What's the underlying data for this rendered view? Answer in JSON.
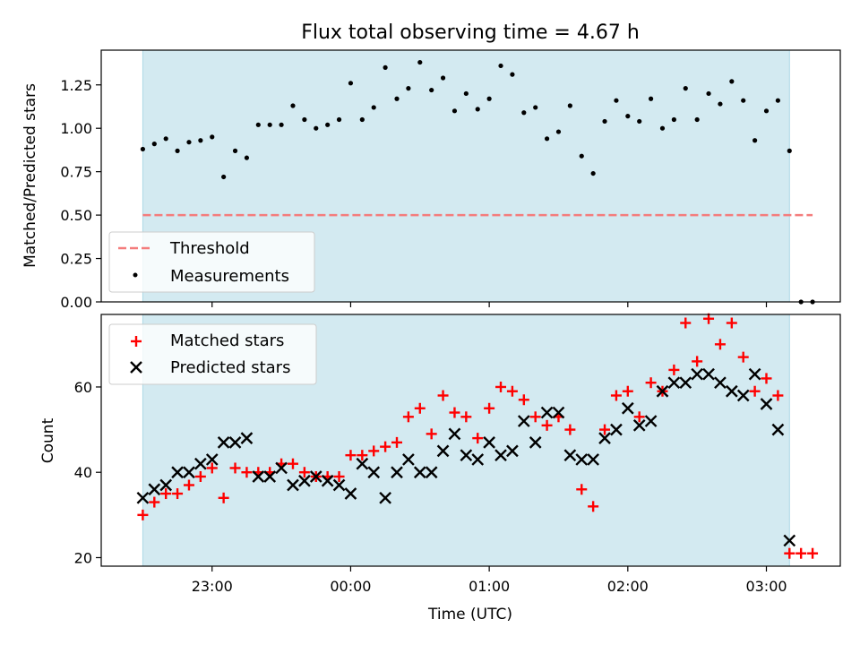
{
  "chart_data": [
    {
      "type": "scatter",
      "title": "Flux total observing time = 4.67 h",
      "xlabel": "",
      "ylabel": "Matched/Predicted stars",
      "ylim": [
        0,
        1.45
      ],
      "y_ticks": [
        "0.00",
        "0.25",
        "0.50",
        "0.75",
        "1.00",
        "1.25"
      ],
      "observing_window": [
        "22:30",
        "03:10"
      ],
      "shade_color": "#d3eaf1",
      "legend_position": "lower-left",
      "legend": [
        "Threshold",
        "Measurements"
      ],
      "threshold": {
        "name": "Threshold",
        "y": 0.5,
        "x_range": [
          "22:30",
          "03:20"
        ],
        "color": "#f47c7c"
      },
      "series": [
        {
          "name": "Measurements",
          "color": "#000000",
          "points": [
            [
              "22:30",
              0.88
            ],
            [
              "22:35",
              0.91
            ],
            [
              "22:40",
              0.94
            ],
            [
              "22:45",
              0.87
            ],
            [
              "22:50",
              0.92
            ],
            [
              "22:55",
              0.93
            ],
            [
              "23:00",
              0.95
            ],
            [
              "23:05",
              0.72
            ],
            [
              "23:10",
              0.87
            ],
            [
              "23:15",
              0.83
            ],
            [
              "23:20",
              1.02
            ],
            [
              "23:25",
              1.02
            ],
            [
              "23:30",
              1.02
            ],
            [
              "23:35",
              1.13
            ],
            [
              "23:40",
              1.05
            ],
            [
              "23:45",
              1.0
            ],
            [
              "23:50",
              1.02
            ],
            [
              "23:55",
              1.05
            ],
            [
              "00:00",
              1.26
            ],
            [
              "00:05",
              1.05
            ],
            [
              "00:10",
              1.12
            ],
            [
              "00:15",
              1.35
            ],
            [
              "00:20",
              1.17
            ],
            [
              "00:25",
              1.23
            ],
            [
              "00:30",
              1.38
            ],
            [
              "00:35",
              1.22
            ],
            [
              "00:40",
              1.29
            ],
            [
              "00:45",
              1.1
            ],
            [
              "00:50",
              1.2
            ],
            [
              "00:55",
              1.11
            ],
            [
              "01:00",
              1.17
            ],
            [
              "01:05",
              1.36
            ],
            [
              "01:10",
              1.31
            ],
            [
              "01:15",
              1.09
            ],
            [
              "01:20",
              1.12
            ],
            [
              "01:25",
              0.94
            ],
            [
              "01:30",
              0.98
            ],
            [
              "01:35",
              1.13
            ],
            [
              "01:40",
              0.84
            ],
            [
              "01:45",
              0.74
            ],
            [
              "01:50",
              1.04
            ],
            [
              "01:55",
              1.16
            ],
            [
              "02:00",
              1.07
            ],
            [
              "02:05",
              1.04
            ],
            [
              "02:10",
              1.17
            ],
            [
              "02:15",
              1.0
            ],
            [
              "02:20",
              1.05
            ],
            [
              "02:25",
              1.23
            ],
            [
              "02:30",
              1.05
            ],
            [
              "02:35",
              1.2
            ],
            [
              "02:40",
              1.14
            ],
            [
              "02:45",
              1.27
            ],
            [
              "02:50",
              1.16
            ],
            [
              "02:55",
              0.93
            ],
            [
              "03:00",
              1.1
            ],
            [
              "03:05",
              1.16
            ],
            [
              "03:10",
              0.87
            ],
            [
              "03:15",
              0.0
            ],
            [
              "03:20",
              0.0
            ]
          ]
        }
      ]
    },
    {
      "type": "scatter",
      "title": "",
      "xlabel": "Time (UTC)",
      "ylabel": "Count",
      "ylim": [
        18,
        77
      ],
      "y_ticks": [
        "20",
        "40",
        "60"
      ],
      "x_ticks": [
        "23:00",
        "00:00",
        "01:00",
        "02:00",
        "03:00"
      ],
      "observing_window": [
        "22:30",
        "03:10"
      ],
      "shade_color": "#d3eaf1",
      "legend_position": "upper-left",
      "legend": [
        "Matched stars",
        "Predicted stars"
      ],
      "series": [
        {
          "name": "Matched stars",
          "marker": "plus",
          "color": "#ff0000",
          "points": [
            [
              "22:30",
              30
            ],
            [
              "22:35",
              33
            ],
            [
              "22:40",
              35
            ],
            [
              "22:45",
              35
            ],
            [
              "22:50",
              37
            ],
            [
              "22:55",
              39
            ],
            [
              "23:00",
              41
            ],
            [
              "23:05",
              34
            ],
            [
              "23:10",
              41
            ],
            [
              "23:15",
              40
            ],
            [
              "23:20",
              40
            ],
            [
              "23:25",
              40
            ],
            [
              "23:30",
              42
            ],
            [
              "23:35",
              42
            ],
            [
              "23:40",
              40
            ],
            [
              "23:45",
              39
            ],
            [
              "23:50",
              39
            ],
            [
              "23:55",
              39
            ],
            [
              "00:00",
              44
            ],
            [
              "00:05",
              44
            ],
            [
              "00:10",
              45
            ],
            [
              "00:15",
              46
            ],
            [
              "00:20",
              47
            ],
            [
              "00:25",
              53
            ],
            [
              "00:30",
              55
            ],
            [
              "00:35",
              49
            ],
            [
              "00:40",
              58
            ],
            [
              "00:45",
              54
            ],
            [
              "00:50",
              53
            ],
            [
              "00:55",
              48
            ],
            [
              "01:00",
              55
            ],
            [
              "01:05",
              60
            ],
            [
              "01:10",
              59
            ],
            [
              "01:15",
              57
            ],
            [
              "01:20",
              53
            ],
            [
              "01:25",
              51
            ],
            [
              "01:30",
              53
            ],
            [
              "01:35",
              50
            ],
            [
              "01:40",
              36
            ],
            [
              "01:45",
              32
            ],
            [
              "01:50",
              50
            ],
            [
              "01:55",
              58
            ],
            [
              "02:00",
              59
            ],
            [
              "02:05",
              53
            ],
            [
              "02:10",
              61
            ],
            [
              "02:15",
              59
            ],
            [
              "02:20",
              64
            ],
            [
              "02:25",
              75
            ],
            [
              "02:30",
              66
            ],
            [
              "02:35",
              76
            ],
            [
              "02:40",
              70
            ],
            [
              "02:45",
              75
            ],
            [
              "02:50",
              67
            ],
            [
              "02:55",
              59
            ],
            [
              "03:00",
              62
            ],
            [
              "03:05",
              58
            ],
            [
              "03:10",
              21
            ],
            [
              "03:15",
              21
            ],
            [
              "03:20",
              21
            ]
          ]
        },
        {
          "name": "Predicted stars",
          "marker": "x",
          "color": "#000000",
          "points": [
            [
              "22:30",
              34
            ],
            [
              "22:35",
              36
            ],
            [
              "22:40",
              37
            ],
            [
              "22:45",
              40
            ],
            [
              "22:50",
              40
            ],
            [
              "22:55",
              42
            ],
            [
              "23:00",
              43
            ],
            [
              "23:05",
              47
            ],
            [
              "23:10",
              47
            ],
            [
              "23:15",
              48
            ],
            [
              "23:20",
              39
            ],
            [
              "23:25",
              39
            ],
            [
              "23:30",
              41
            ],
            [
              "23:35",
              37
            ],
            [
              "23:40",
              38
            ],
            [
              "23:45",
              39
            ],
            [
              "23:50",
              38
            ],
            [
              "23:55",
              37
            ],
            [
              "00:00",
              35
            ],
            [
              "00:05",
              42
            ],
            [
              "00:10",
              40
            ],
            [
              "00:15",
              34
            ],
            [
              "00:20",
              40
            ],
            [
              "00:25",
              43
            ],
            [
              "00:30",
              40
            ],
            [
              "00:35",
              40
            ],
            [
              "00:40",
              45
            ],
            [
              "00:45",
              49
            ],
            [
              "00:50",
              44
            ],
            [
              "00:55",
              43
            ],
            [
              "01:00",
              47
            ],
            [
              "01:05",
              44
            ],
            [
              "01:10",
              45
            ],
            [
              "01:15",
              52
            ],
            [
              "01:20",
              47
            ],
            [
              "01:25",
              54
            ],
            [
              "01:30",
              54
            ],
            [
              "01:35",
              44
            ],
            [
              "01:40",
              43
            ],
            [
              "01:45",
              43
            ],
            [
              "01:50",
              48
            ],
            [
              "01:55",
              50
            ],
            [
              "02:00",
              55
            ],
            [
              "02:05",
              51
            ],
            [
              "02:10",
              52
            ],
            [
              "02:15",
              59
            ],
            [
              "02:20",
              61
            ],
            [
              "02:25",
              61
            ],
            [
              "02:30",
              63
            ],
            [
              "02:35",
              63
            ],
            [
              "02:40",
              61
            ],
            [
              "02:45",
              59
            ],
            [
              "02:50",
              58
            ],
            [
              "02:55",
              63
            ],
            [
              "03:00",
              56
            ],
            [
              "03:05",
              50
            ],
            [
              "03:10",
              24
            ]
          ]
        }
      ]
    }
  ]
}
